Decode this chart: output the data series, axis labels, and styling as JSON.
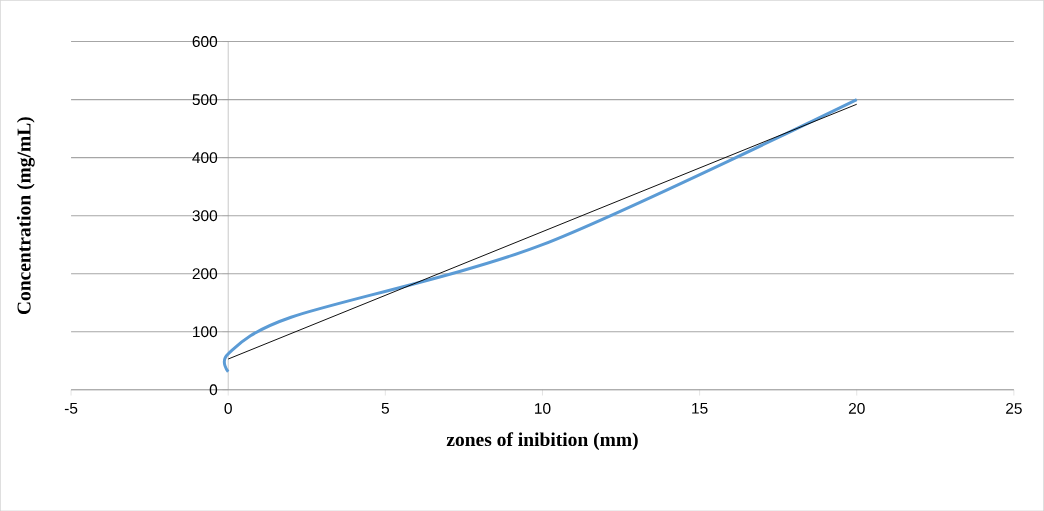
{
  "chart_data": {
    "type": "line",
    "xlabel": "zones of inibition (mm)",
    "ylabel": "Concentration (mg/mL)",
    "xlim": [
      -5,
      25
    ],
    "xticks": [
      -5,
      0,
      5,
      10,
      15,
      20,
      25
    ],
    "ylim": [
      0,
      600
    ],
    "yticks": [
      0,
      100,
      200,
      300,
      400,
      500,
      600
    ],
    "grid": "y",
    "marker": "none",
    "line_style": "solid",
    "series": [
      {
        "x": [
          0,
          0,
          2,
          10,
          20
        ],
        "values": [
          31,
          62,
          125,
          250,
          500
        ],
        "color": "#5b9bd5"
      },
      {
        "type": "line",
        "x": [
          0,
          20
        ],
        "values": [
          53,
          492
        ],
        "color": "#000000"
      }
    ]
  }
}
